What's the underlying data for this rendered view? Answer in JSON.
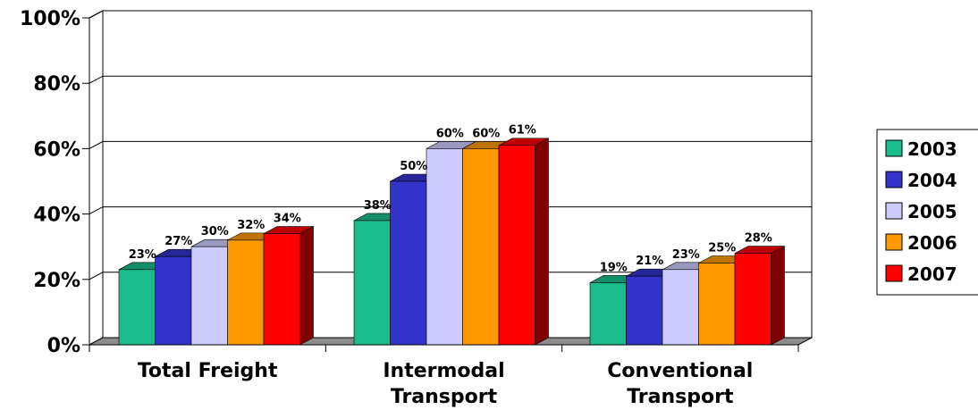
{
  "chart_data": {
    "type": "bar",
    "title": "",
    "xlabel": "",
    "ylabel": "",
    "ylim": [
      0,
      100
    ],
    "yticks": [
      "0%",
      "20%",
      "40%",
      "60%",
      "80%",
      "100%"
    ],
    "grid": true,
    "legend_position": "right",
    "categories": [
      [
        "Total Freight"
      ],
      [
        "Intermodal",
        "Transport"
      ],
      [
        "Conventional",
        "Transport"
      ]
    ],
    "series": [
      {
        "name": "2003",
        "color": "#1abc8c",
        "values": [
          23,
          38,
          19
        ],
        "labels": [
          "23%",
          "38%",
          "19%"
        ]
      },
      {
        "name": "2004",
        "color": "#3333cc",
        "values": [
          27,
          50,
          21
        ],
        "labels": [
          "27%",
          "50%",
          "21%"
        ]
      },
      {
        "name": "2005",
        "color": "#ccccff",
        "values": [
          30,
          60,
          23
        ],
        "labels": [
          "30%",
          "60%",
          "23%"
        ]
      },
      {
        "name": "2006",
        "color": "#ff9900",
        "values": [
          32,
          60,
          25
        ],
        "labels": [
          "32%",
          "60%",
          "25%"
        ]
      },
      {
        "name": "2007",
        "color": "#ff0000",
        "values": [
          34,
          61,
          28
        ],
        "labels": [
          "34%",
          "61%",
          "28%"
        ]
      }
    ]
  }
}
